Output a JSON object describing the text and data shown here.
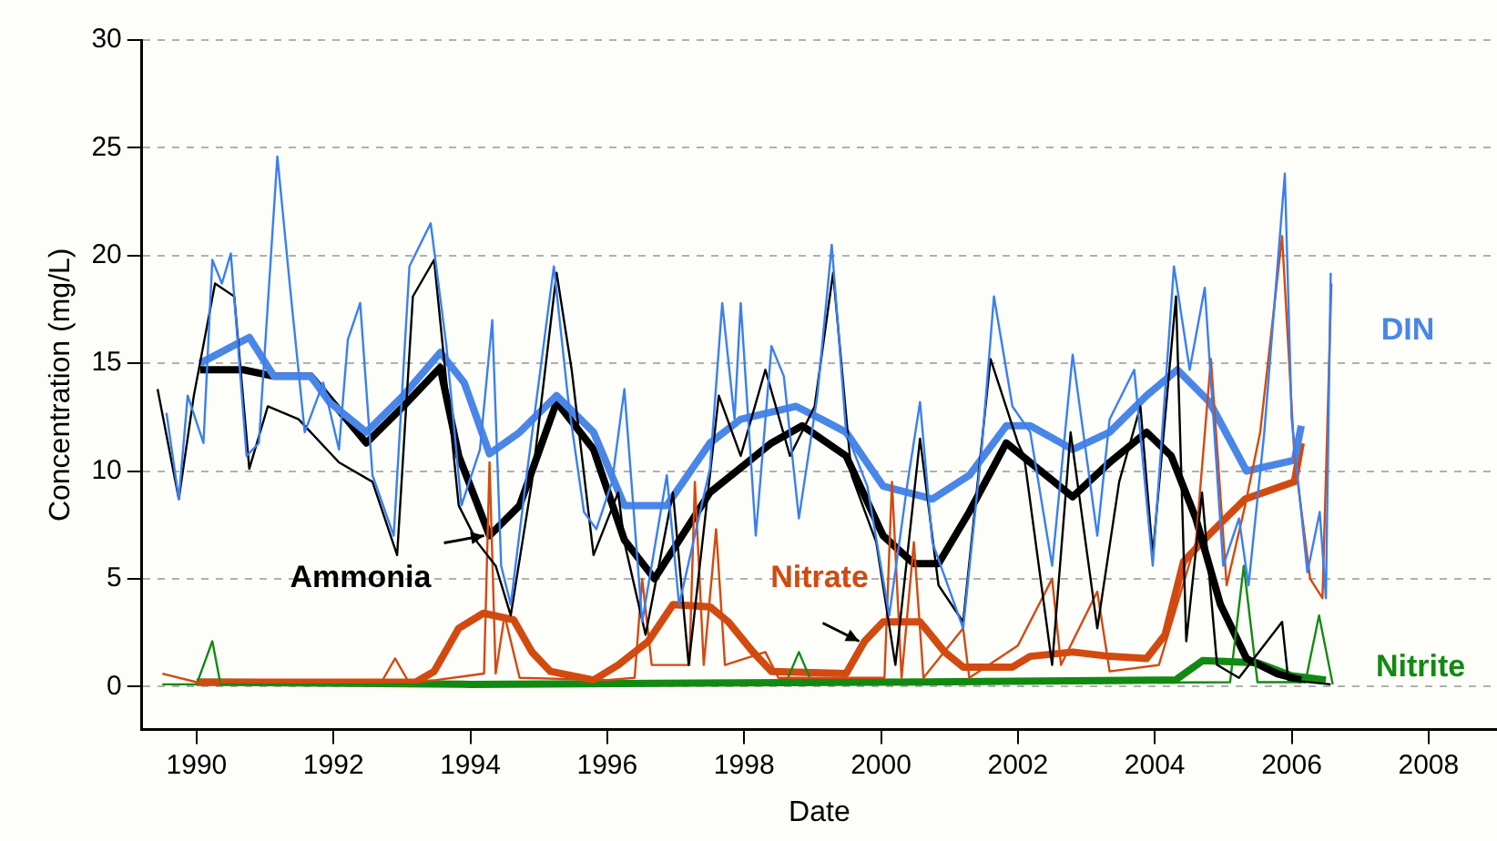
{
  "chart_data": {
    "type": "line",
    "xlabel": "Date",
    "ylabel": "Concentration (mg/L)",
    "xlim": [
      1989.2,
      2009
    ],
    "xticks": [
      1990,
      1992,
      1994,
      1996,
      1998,
      2000,
      2002,
      2004,
      2006,
      2008
    ],
    "ylim": [
      -2,
      30
    ],
    "yticks": [
      0,
      5,
      10,
      15,
      20,
      25,
      30
    ],
    "grid": "y",
    "legend": false,
    "marker": "none",
    "line_style": "solid",
    "annotations": [
      "DIN",
      {
        "text": "Ammonia",
        "x": 1994.28,
        "y": 7
      },
      {
        "text": "Nitrate",
        "x": 1999.76,
        "y": 2.1
      },
      "Nitrite"
    ],
    "series": [
      {
        "color": "#3a7ff0",
        "x": [
          1989.56,
          1989.74,
          1989.87,
          1990.1,
          1990.23,
          1990.37,
          1990.5,
          1990.73,
          1990.91,
          1991.18,
          1991.36,
          1991.58,
          1991.85,
          1992.08,
          1992.21,
          1992.39,
          1992.57,
          1992.88,
          1993.11,
          1993.42,
          1993.65,
          1993.87,
          1994.14,
          1994.32,
          1994.45,
          1994.59,
          1994.81,
          1995.22,
          1995.44,
          1995.66,
          1995.84,
          1996.07,
          1996.25,
          1996.51,
          1996.87,
          1997.05,
          1997.5,
          1997.68,
          1997.86,
          1997.95,
          1998.17,
          1998.4,
          1998.58,
          1998.8,
          1999.07,
          1999.28,
          1999.49,
          1999.8,
          2000.12,
          2000.39,
          2000.57,
          2000.75,
          2001.2,
          2001.47,
          2001.65,
          2001.92,
          2002.18,
          2002.5,
          2002.8,
          2003.16,
          2003.34,
          2003.7,
          2003.97,
          2004.28,
          2004.51,
          2004.73,
          2005.0,
          2005.23,
          2005.37,
          2005.6,
          2005.9,
          2006.0,
          2006.23,
          2006.41,
          2006.5,
          2006.57
        ],
        "values": [
          12.7,
          8.7,
          13.5,
          11.3,
          19.8,
          18.7,
          20.1,
          10.7,
          11.3,
          24.6,
          18.7,
          11.8,
          14.1,
          11,
          16.1,
          17.8,
          9.8,
          7,
          19.5,
          21.5,
          15.8,
          8.4,
          11,
          17,
          5.6,
          3.8,
          9.5,
          19.5,
          13,
          8.1,
          7.3,
          9.5,
          13.8,
          3,
          9.8,
          3.8,
          10.1,
          17.8,
          12.4,
          17.8,
          7,
          15.8,
          14.4,
          7.8,
          13.5,
          20.5,
          11.8,
          9.3,
          3.3,
          9.5,
          13.2,
          6.7,
          2.7,
          11,
          18.1,
          13,
          11.8,
          5.6,
          15.4,
          7,
          12.4,
          14.7,
          5.6,
          19.5,
          14.7,
          18.5,
          5.6,
          7.8,
          4.7,
          11.8,
          23.8,
          12.4,
          5.3,
          8.1,
          4.1,
          19.2
        ]
      },
      {
        "color": "#000000",
        "x": [
          1989.43,
          1989.74,
          1989.96,
          1990.27,
          1990.55,
          1990.77,
          1991.04,
          1991.49,
          1992.08,
          1992.57,
          1992.93,
          1993.16,
          1993.47,
          1993.83,
          1994.1,
          1994.37,
          1994.59,
          1994.9,
          1995.26,
          1995.48,
          1995.8,
          1996.16,
          1996.25,
          1996.56,
          1996.96,
          1997.19,
          1997.63,
          1997.95,
          1998.31,
          1998.67,
          1999.03,
          1999.3,
          1999.57,
          1999.93,
          2000.21,
          2000.57,
          2000.84,
          2001.2,
          2001.6,
          2002.0,
          2002.09,
          2002.5,
          2002.77,
          2003.16,
          2003.48,
          2003.79,
          2003.97,
          2004.31,
          2004.46,
          2004.69,
          2004.91,
          2005.23,
          2005.86,
          2005.95,
          2006.57
        ],
        "values": [
          13.8,
          8.7,
          13.5,
          18.7,
          18.1,
          10.1,
          13,
          12.4,
          10.4,
          9.5,
          6.1,
          18.1,
          19.8,
          8.4,
          6.7,
          5.6,
          3.3,
          9.5,
          19.2,
          14.7,
          6.1,
          9,
          6.7,
          2.4,
          9,
          1,
          13.5,
          10.7,
          14.7,
          10.7,
          13,
          19.2,
          9.8,
          6.7,
          1,
          11.5,
          4.7,
          3,
          15.2,
          11.3,
          10.7,
          1,
          11.8,
          2.7,
          9.5,
          13,
          6.1,
          18.1,
          2.1,
          9,
          1,
          0.4,
          3,
          0.3,
          0.1
        ]
      },
      {
        "color": "#d24a10",
        "x": [
          1989.5,
          1990.0,
          1992.7,
          1992.9,
          1993.1,
          1993.5,
          1994.2,
          1994.28,
          1994.37,
          1994.5,
          1994.72,
          1996.0,
          1996.4,
          1996.51,
          1996.65,
          1997.2,
          1997.28,
          1997.41,
          1997.59,
          1997.72,
          1998.31,
          1998.5,
          2000.05,
          2000.16,
          2000.3,
          2000.48,
          2000.62,
          2001.2,
          2001.29,
          2002.0,
          2002.5,
          2002.63,
          2003.16,
          2003.34,
          2004.06,
          2004.6,
          2004.82,
          2005.05,
          2005.32,
          2005.54,
          2005.86,
          2006.04,
          2006.27,
          2006.45,
          2006.58
        ],
        "values": [
          0.6,
          0.2,
          0.2,
          1.3,
          0.2,
          0.3,
          0.6,
          10.4,
          0.6,
          3.3,
          0.4,
          0.3,
          0.4,
          5,
          1,
          1,
          9.5,
          1,
          7.3,
          1,
          1.6,
          0.4,
          0.4,
          9.5,
          0.4,
          6.7,
          0.4,
          2.7,
          0.4,
          1.9,
          5,
          1,
          4.4,
          0.7,
          1,
          6.7,
          15.2,
          4.7,
          8.4,
          11.8,
          20.9,
          10.7,
          5,
          4.1,
          18.7
        ]
      },
      {
        "color": "#128a12",
        "x": [
          1989.5,
          1990.0,
          1990.23,
          1990.35,
          1998.6,
          1998.8,
          1999.0,
          2005.1,
          2005.3,
          2005.5,
          2006.2,
          2006.4,
          2006.6
        ],
        "values": [
          0.1,
          0.1,
          2.1,
          0.1,
          0.1,
          1.6,
          0.1,
          0.2,
          5.6,
          0.2,
          0.2,
          3.3,
          0.1
        ]
      },
      {
        "color": "#4a86e8",
        "x": [
          1990.05,
          1990.77,
          1991.13,
          1991.67,
          1991.94,
          1992.48,
          1993.02,
          1993.56,
          1993.91,
          1994.28,
          1994.72,
          1995.26,
          1995.8,
          1996.25,
          1996.87,
          1997.5,
          1997.95,
          1998.76,
          1999.13,
          1999.49,
          2000.03,
          2000.75,
          2001.29,
          2001.83,
          2002.18,
          2002.8,
          2003.34,
          2003.88,
          2004.33,
          2004.8,
          2005.34,
          2006.04,
          2006.14
        ],
        "values": [
          15,
          16.2,
          14.4,
          14.4,
          13.2,
          11.8,
          13.5,
          15.5,
          14.1,
          10.8,
          11.8,
          13.5,
          11.8,
          8.4,
          8.4,
          11.3,
          12.4,
          13,
          12.4,
          11.8,
          9.3,
          8.7,
          9.8,
          12.1,
          12.1,
          11,
          11.8,
          13.5,
          14.7,
          13.2,
          10,
          10.5,
          12.1
        ]
      },
      {
        "color": "#000000",
        "x": [
          1990.05,
          1990.68,
          1991.13,
          1991.67,
          1992.48,
          1993.02,
          1993.56,
          1993.83,
          1994.28,
          1994.72,
          1995.26,
          1995.8,
          1996.25,
          1996.69,
          1997.5,
          1998.4,
          1998.85,
          1999.49,
          2000.03,
          2000.48,
          2000.84,
          2001.29,
          2001.83,
          2002.8,
          2003.34,
          2003.88,
          2004.24,
          2004.6,
          2004.96,
          2005.34,
          2005.78,
          2006.14
        ],
        "values": [
          14.7,
          14.7,
          14.4,
          14.4,
          11.3,
          13,
          14.8,
          10.7,
          7,
          8.4,
          13.2,
          11,
          6.8,
          5,
          9,
          11.3,
          12.1,
          10.7,
          7,
          5.7,
          5.7,
          8.1,
          11.3,
          8.8,
          10.4,
          11.8,
          10.7,
          7.8,
          3.8,
          1.3,
          0.6,
          0.3
        ]
      },
      {
        "color": "#d24a10",
        "x": [
          1990.0,
          1993.2,
          1993.47,
          1993.83,
          1994.19,
          1994.63,
          1994.9,
          1995.17,
          1995.8,
          1996.16,
          1996.6,
          1996.96,
          1997.5,
          1997.77,
          1998.13,
          1998.4,
          1999.49,
          1999.76,
          2000.03,
          2000.57,
          2000.93,
          2001.2,
          2001.92,
          2002.18,
          2002.8,
          2003.34,
          2003.88,
          2004.15,
          2004.42,
          2004.78,
          2005.32,
          2006.04,
          2006.14
        ],
        "values": [
          0.2,
          0.2,
          0.7,
          2.7,
          3.4,
          3.1,
          1.6,
          0.7,
          0.3,
          1,
          2.1,
          3.8,
          3.7,
          3,
          1.6,
          0.7,
          0.6,
          2.1,
          3,
          3,
          1.6,
          0.9,
          0.9,
          1.4,
          1.6,
          1.4,
          1.3,
          2.4,
          5.8,
          7,
          8.7,
          9.5,
          11.3
        ]
      },
      {
        "color": "#128a12",
        "x": [
          1990.0,
          1994.0,
          2000.0,
          2004.3,
          2004.7,
          2005.5,
          2006.0,
          2006.5
        ],
        "values": [
          0.2,
          0.1,
          0.2,
          0.3,
          1.2,
          1.1,
          0.5,
          0.3
        ]
      }
    ]
  }
}
